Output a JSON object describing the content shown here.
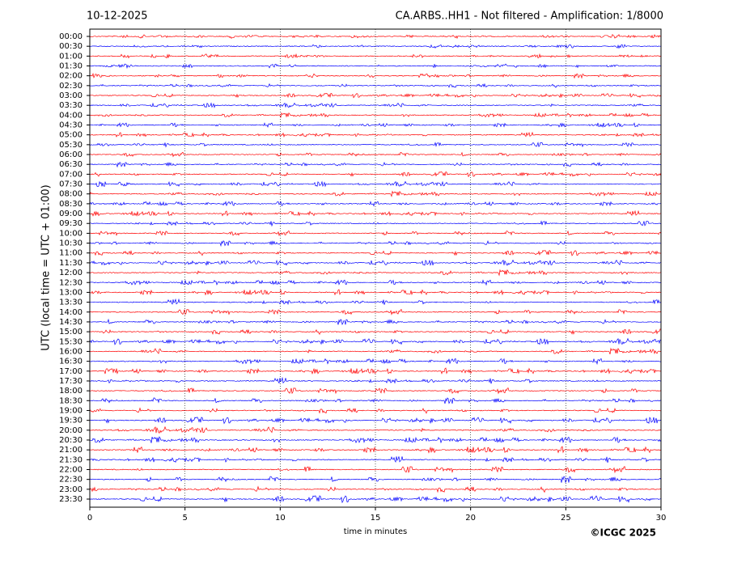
{
  "chart_data": {
    "type": "helicorder",
    "date": "10-12-2025",
    "title": "CA.ARBS..HH1 - Not filtered - Amplification: 1/8000",
    "xlabel": "time in minutes",
    "ylabel": "UTC (local time = UTC + 01:00)",
    "credit": "©ICGC 2025",
    "categories": [
      "00:00",
      "00:30",
      "01:00",
      "01:30",
      "02:00",
      "02:30",
      "03:00",
      "03:30",
      "04:00",
      "04:30",
      "05:00",
      "05:30",
      "06:00",
      "06:30",
      "07:00",
      "07:30",
      "08:00",
      "08:30",
      "09:00",
      "09:30",
      "10:00",
      "10:30",
      "11:00",
      "11:30",
      "12:00",
      "12:30",
      "13:00",
      "13:30",
      "14:00",
      "14:30",
      "15:00",
      "15:30",
      "16:00",
      "16:30",
      "17:00",
      "17:30",
      "18:00",
      "18:30",
      "19:00",
      "19:30",
      "20:00",
      "20:30",
      "21:00",
      "21:30",
      "22:00",
      "22:30",
      "23:00",
      "23:30"
    ],
    "colors": [
      "#ff0000",
      "#0000ff"
    ],
    "xlim": [
      0,
      30
    ],
    "xticks": [
      0,
      5,
      10,
      15,
      20,
      25,
      30
    ],
    "grid": true
  }
}
